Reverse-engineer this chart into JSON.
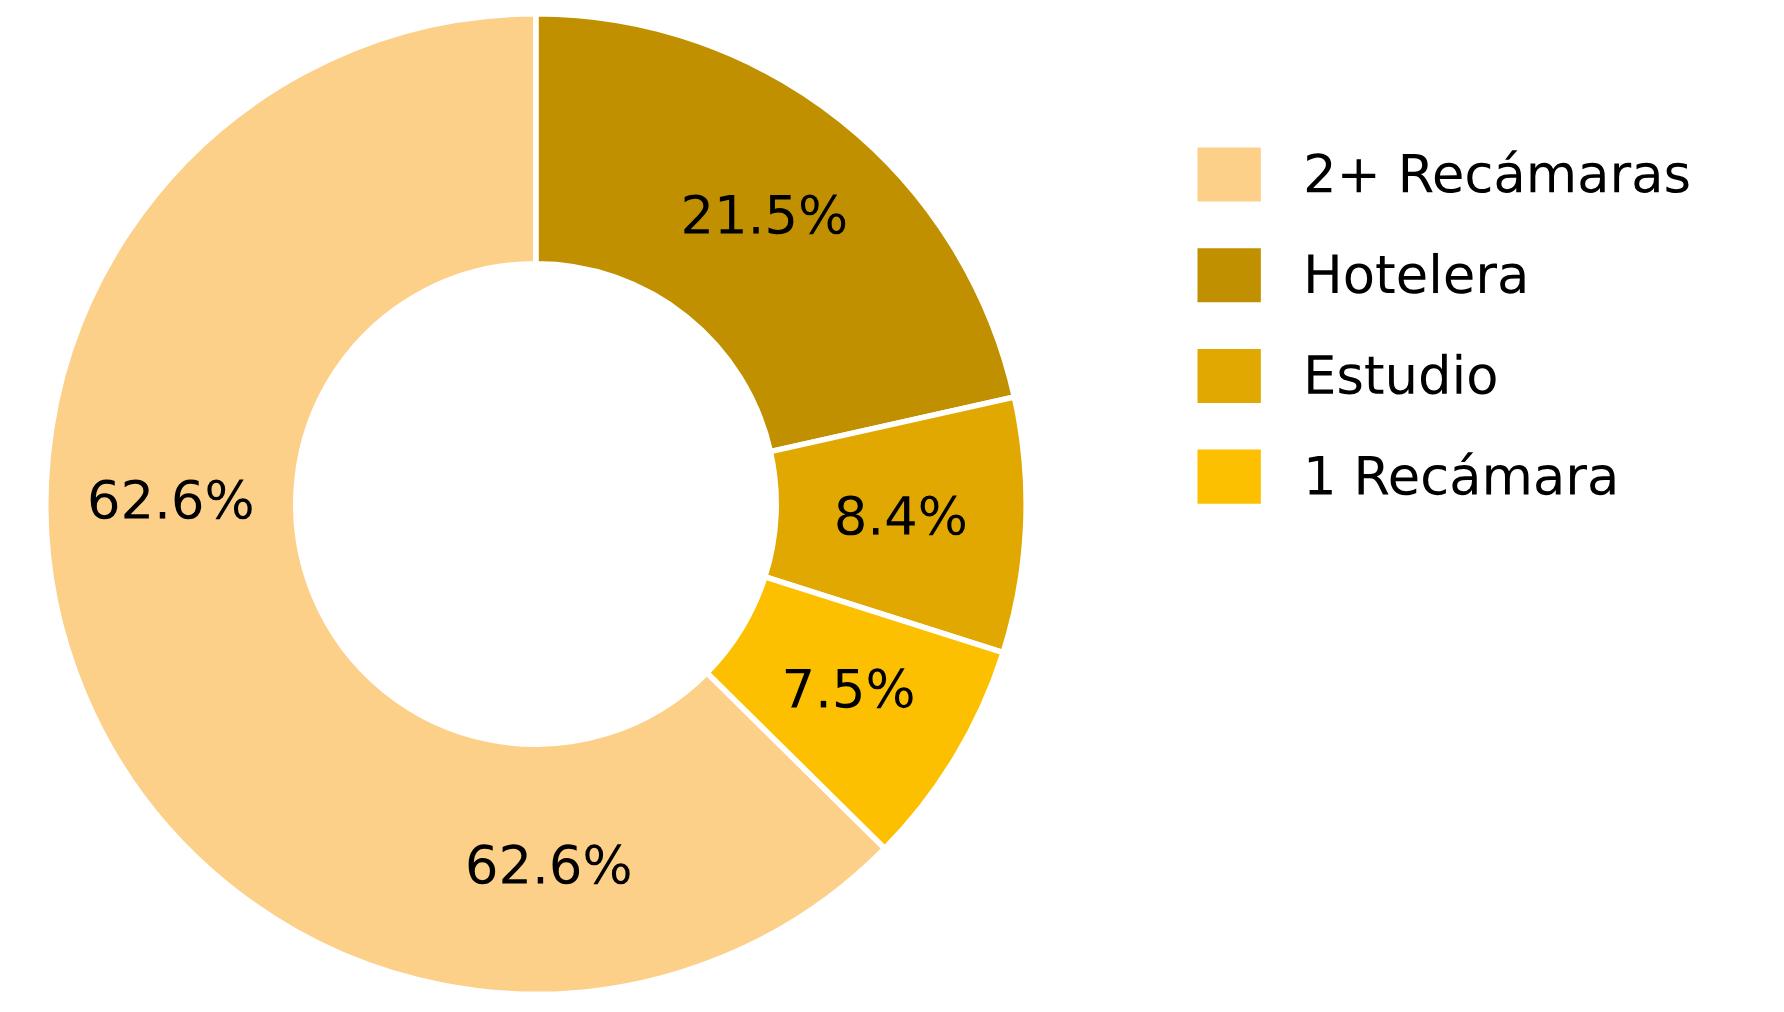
{
  "chart_data": {
    "type": "donut",
    "categories": [
      "2+ Recámaras",
      "Hotelera",
      "Estudio",
      "1 Recámara"
    ],
    "values": [
      62.6,
      21.5,
      8.4,
      7.5
    ],
    "colors": [
      "#fdd08a",
      "#c09000",
      "#e0a800",
      "#fcc000"
    ],
    "value_labels": [
      "62.6%",
      "21.5%",
      "8.4%",
      "7.5%"
    ],
    "legend": "right",
    "annotations": [
      "62.6%"
    ]
  }
}
